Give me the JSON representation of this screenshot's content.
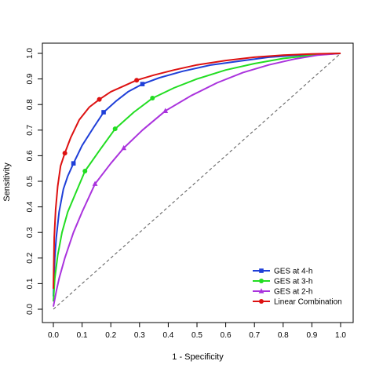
{
  "chart_data": {
    "type": "line",
    "xlabel": "1 - Specificity",
    "ylabel": "Sensitivity",
    "xlim": [
      0,
      1
    ],
    "ylim": [
      0,
      1
    ],
    "x_ticks": [
      "0.0",
      "0.1",
      "0.2",
      "0.3",
      "0.4",
      "0.5",
      "0.6",
      "0.7",
      "0.8",
      "0.9",
      "1.0"
    ],
    "y_ticks": [
      "0.0",
      "0.1",
      "0.2",
      "0.3",
      "0.4",
      "0.5",
      "0.6",
      "0.7",
      "0.8",
      "0.9",
      "1.0"
    ],
    "grid": false,
    "legend_position": "bottom-right",
    "reference_line": {
      "style": "dashed",
      "color": "#555555",
      "from": [
        0,
        0
      ],
      "to": [
        1,
        1
      ]
    },
    "series": [
      {
        "name": "GES at 4-h",
        "color": "#1f3fd8",
        "marker": "square",
        "x": [
          0,
          0.005,
          0.01,
          0.02,
          0.035,
          0.05,
          0.07,
          0.1,
          0.14,
          0.175,
          0.22,
          0.26,
          0.31,
          0.37,
          0.45,
          0.55,
          0.65,
          0.75,
          0.85,
          0.93,
          1.0
        ],
        "y": [
          0.05,
          0.2,
          0.28,
          0.38,
          0.47,
          0.52,
          0.57,
          0.64,
          0.71,
          0.77,
          0.815,
          0.85,
          0.88,
          0.905,
          0.93,
          0.955,
          0.97,
          0.985,
          0.993,
          0.998,
          1.0
        ],
        "markers_x": [
          0.07,
          0.175,
          0.31
        ],
        "markers_y": [
          0.57,
          0.77,
          0.88
        ]
      },
      {
        "name": "GES at 3-h",
        "color": "#22dd22",
        "marker": "circle",
        "x": [
          0,
          0.005,
          0.015,
          0.03,
          0.05,
          0.08,
          0.11,
          0.16,
          0.215,
          0.28,
          0.345,
          0.42,
          0.5,
          0.6,
          0.7,
          0.8,
          0.9,
          1.0
        ],
        "y": [
          0.03,
          0.12,
          0.21,
          0.3,
          0.38,
          0.46,
          0.54,
          0.62,
          0.705,
          0.77,
          0.825,
          0.865,
          0.9,
          0.935,
          0.96,
          0.98,
          0.993,
          1.0
        ],
        "markers_x": [
          0.11,
          0.215,
          0.345
        ],
        "markers_y": [
          0.54,
          0.705,
          0.825
        ]
      },
      {
        "name": "GES at 2-h",
        "color": "#aa33dd",
        "marker": "triangle",
        "x": [
          0,
          0.01,
          0.02,
          0.04,
          0.07,
          0.1,
          0.145,
          0.2,
          0.245,
          0.31,
          0.39,
          0.48,
          0.57,
          0.66,
          0.75,
          0.84,
          0.92,
          1.0
        ],
        "y": [
          0.01,
          0.07,
          0.12,
          0.2,
          0.3,
          0.38,
          0.49,
          0.57,
          0.63,
          0.7,
          0.775,
          0.835,
          0.885,
          0.925,
          0.955,
          0.978,
          0.993,
          1.0
        ],
        "markers_x": [
          0.145,
          0.245,
          0.39
        ],
        "markers_y": [
          0.49,
          0.63,
          0.775
        ]
      },
      {
        "name": "Linear Combination",
        "color": "#dd1111",
        "marker": "circle",
        "x": [
          0,
          0.003,
          0.008,
          0.015,
          0.025,
          0.04,
          0.06,
          0.09,
          0.125,
          0.16,
          0.2,
          0.24,
          0.29,
          0.35,
          0.42,
          0.5,
          0.6,
          0.7,
          0.8,
          0.9,
          1.0
        ],
        "y": [
          0.08,
          0.28,
          0.39,
          0.48,
          0.56,
          0.61,
          0.67,
          0.74,
          0.79,
          0.82,
          0.85,
          0.87,
          0.895,
          0.915,
          0.935,
          0.955,
          0.972,
          0.985,
          0.993,
          0.998,
          1.0
        ],
        "markers_x": [
          0.04,
          0.16,
          0.29
        ],
        "markers_y": [
          0.61,
          0.82,
          0.895
        ]
      }
    ]
  }
}
